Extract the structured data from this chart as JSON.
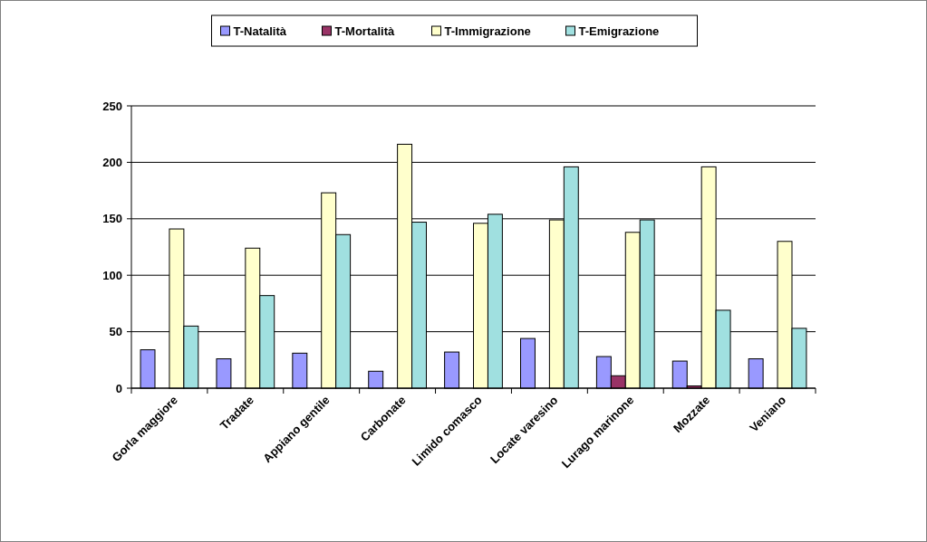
{
  "chart_data": {
    "type": "bar",
    "categories": [
      "Gorla maggiore",
      "Tradate",
      "Appiano gentile",
      "Carbonate",
      "Limido comasco",
      "Locate varesino",
      "Lurago marinone",
      "Mozzate",
      "Veniano"
    ],
    "series": [
      {
        "name": "T-Natalità",
        "color": "#9999ff",
        "values": [
          34,
          26,
          31,
          15,
          32,
          44,
          28,
          24,
          26
        ]
      },
      {
        "name": "T-Mortalità",
        "color": "#993366",
        "values": [
          0,
          0,
          0,
          0,
          0,
          0,
          11,
          2,
          0
        ]
      },
      {
        "name": "T-Immigrazione",
        "color": "#ffffcc",
        "values": [
          141,
          124,
          173,
          216,
          146,
          149,
          138,
          196,
          130
        ]
      },
      {
        "name": "T-Emigrazione",
        "color": "#a0e0e0",
        "values": [
          55,
          82,
          136,
          147,
          154,
          196,
          149,
          69,
          53
        ]
      }
    ],
    "ylim": [
      0,
      250
    ],
    "yticks": [
      0,
      50,
      100,
      150,
      200,
      250
    ],
    "grid": "y",
    "legend": "top"
  }
}
